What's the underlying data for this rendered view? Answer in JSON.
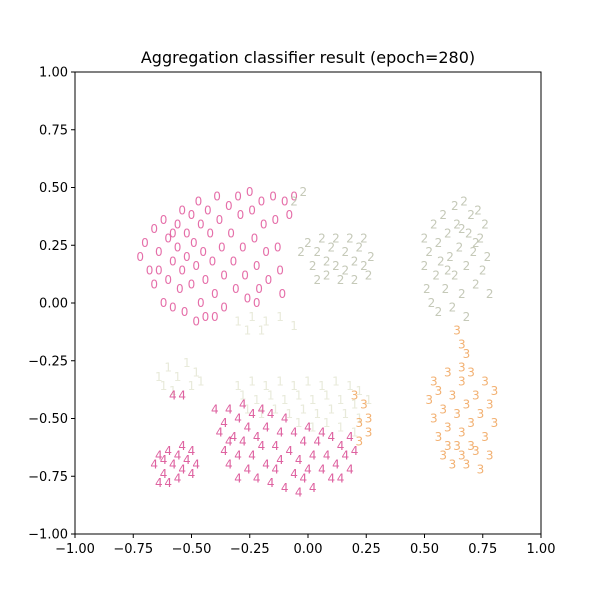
{
  "chart_data": {
    "type": "scatter",
    "title": "Aggregation classifier result (epoch=280)",
    "xlabel": "",
    "ylabel": "",
    "xlim": [
      -1.0,
      1.0
    ],
    "ylim": [
      -1.0,
      1.0
    ],
    "grid": false,
    "xticks": [
      "−1.00",
      "−0.75",
      "−0.50",
      "−0.25",
      "0.00",
      "0.25",
      "0.50",
      "0.75",
      "1.00"
    ],
    "yticks": [
      "1.00",
      "0.75",
      "0.50",
      "0.25",
      "0.00",
      "−0.25",
      "−0.50",
      "−0.75",
      "−1.00"
    ],
    "series": [
      {
        "label": "0",
        "color": "#e0569a",
        "opacity": 0.85,
        "points": [
          [
            -0.72,
            0.2
          ],
          [
            -0.7,
            0.26
          ],
          [
            -0.68,
            0.14
          ],
          [
            -0.66,
            0.32
          ],
          [
            -0.66,
            0.08
          ],
          [
            -0.64,
            0.22
          ],
          [
            -0.62,
            0.36
          ],
          [
            -0.62,
            0.0
          ],
          [
            -0.6,
            0.28
          ],
          [
            -0.6,
            0.1
          ],
          [
            -0.58,
            0.18
          ],
          [
            -0.58,
            -0.02
          ],
          [
            -0.56,
            0.34
          ],
          [
            -0.56,
            0.24
          ],
          [
            -0.55,
            0.06
          ],
          [
            -0.54,
            0.4
          ],
          [
            -0.54,
            0.14
          ],
          [
            -0.53,
            -0.04
          ],
          [
            -0.52,
            0.3
          ],
          [
            -0.52,
            0.2
          ],
          [
            -0.5,
            0.38
          ],
          [
            -0.5,
            0.08
          ],
          [
            -0.49,
            0.26
          ],
          [
            -0.48,
            0.16
          ],
          [
            -0.47,
            0.44
          ],
          [
            -0.46,
            0.0
          ],
          [
            -0.46,
            0.34
          ],
          [
            -0.45,
            0.22
          ],
          [
            -0.44,
            0.1
          ],
          [
            -0.44,
            -0.06
          ],
          [
            -0.43,
            0.4
          ],
          [
            -0.42,
            0.3
          ],
          [
            -0.41,
            0.18
          ],
          [
            -0.4,
            0.04
          ],
          [
            -0.39,
            0.46
          ],
          [
            -0.38,
            0.36
          ],
          [
            -0.37,
            0.24
          ],
          [
            -0.36,
            0.12
          ],
          [
            -0.36,
            -0.02
          ],
          [
            -0.34,
            0.42
          ],
          [
            -0.33,
            0.3
          ],
          [
            -0.32,
            0.18
          ],
          [
            -0.31,
            0.06
          ],
          [
            -0.3,
            0.46
          ],
          [
            -0.29,
            0.38
          ],
          [
            -0.28,
            0.24
          ],
          [
            -0.27,
            0.12
          ],
          [
            -0.26,
            0.02
          ],
          [
            -0.25,
            0.48
          ],
          [
            -0.24,
            0.4
          ],
          [
            -0.23,
            0.28
          ],
          [
            -0.22,
            0.16
          ],
          [
            -0.21,
            0.06
          ],
          [
            -0.2,
            0.44
          ],
          [
            -0.19,
            0.34
          ],
          [
            -0.18,
            0.22
          ],
          [
            -0.17,
            0.1
          ],
          [
            -0.22,
            0.0
          ],
          [
            -0.15,
            0.46
          ],
          [
            -0.14,
            0.36
          ],
          [
            -0.13,
            0.24
          ],
          [
            -0.12,
            0.14
          ],
          [
            -0.11,
            0.04
          ],
          [
            -0.1,
            0.44
          ],
          [
            -0.08,
            0.38
          ],
          [
            -0.06,
            0.46
          ],
          [
            -0.48,
            -0.08
          ],
          [
            -0.4,
            -0.06
          ],
          [
            -0.58,
            0.3
          ],
          [
            -0.64,
            0.14
          ]
        ]
      },
      {
        "label": "1",
        "color": "#e6e8d6",
        "opacity": 0.9,
        "points": [
          [
            -0.3,
            -0.08
          ],
          [
            -0.24,
            -0.06
          ],
          [
            -0.18,
            -0.08
          ],
          [
            -0.12,
            -0.06
          ],
          [
            -0.06,
            -0.1
          ],
          [
            -0.26,
            -0.12
          ],
          [
            -0.2,
            -0.12
          ],
          [
            -0.64,
            -0.32
          ],
          [
            -0.6,
            -0.28
          ],
          [
            -0.56,
            -0.32
          ],
          [
            -0.52,
            -0.26
          ],
          [
            -0.48,
            -0.3
          ],
          [
            -0.46,
            -0.34
          ],
          [
            -0.62,
            -0.36
          ],
          [
            -0.58,
            -0.38
          ],
          [
            -0.5,
            -0.36
          ],
          [
            -0.3,
            -0.36
          ],
          [
            -0.24,
            -0.34
          ],
          [
            -0.18,
            -0.36
          ],
          [
            -0.12,
            -0.34
          ],
          [
            -0.06,
            -0.36
          ],
          [
            0.0,
            -0.34
          ],
          [
            0.06,
            -0.36
          ],
          [
            0.12,
            -0.34
          ],
          [
            0.18,
            -0.36
          ],
          [
            0.22,
            -0.38
          ],
          [
            -0.28,
            -0.4
          ],
          [
            -0.22,
            -0.42
          ],
          [
            -0.16,
            -0.4
          ],
          [
            -0.1,
            -0.42
          ],
          [
            -0.04,
            -0.4
          ],
          [
            0.02,
            -0.42
          ],
          [
            0.08,
            -0.4
          ],
          [
            0.14,
            -0.42
          ],
          [
            0.2,
            -0.44
          ],
          [
            0.26,
            -0.42
          ],
          [
            -0.26,
            -0.46
          ],
          [
            -0.2,
            -0.48
          ],
          [
            -0.14,
            -0.46
          ],
          [
            -0.08,
            -0.48
          ],
          [
            -0.02,
            -0.46
          ],
          [
            0.04,
            -0.48
          ],
          [
            0.1,
            -0.46
          ],
          [
            0.16,
            -0.48
          ],
          [
            0.22,
            -0.5
          ],
          [
            -0.04,
            -0.52
          ],
          [
            0.02,
            -0.54
          ],
          [
            0.08,
            -0.52
          ],
          [
            0.14,
            -0.54
          ],
          [
            0.2,
            -0.56
          ]
        ]
      },
      {
        "label": "2",
        "color": "#bfc3b0",
        "opacity": 0.9,
        "points": [
          [
            -0.06,
            0.44
          ],
          [
            -0.02,
            0.48
          ],
          [
            -0.03,
            0.22
          ],
          [
            0.0,
            0.26
          ],
          [
            0.02,
            0.16
          ],
          [
            0.04,
            0.22
          ],
          [
            0.04,
            0.1
          ],
          [
            0.06,
            0.28
          ],
          [
            0.08,
            0.18
          ],
          [
            0.08,
            0.12
          ],
          [
            0.1,
            0.24
          ],
          [
            0.12,
            0.16
          ],
          [
            0.12,
            0.28
          ],
          [
            0.14,
            0.1
          ],
          [
            0.16,
            0.22
          ],
          [
            0.16,
            0.14
          ],
          [
            0.18,
            0.28
          ],
          [
            0.2,
            0.18
          ],
          [
            0.2,
            0.1
          ],
          [
            0.22,
            0.24
          ],
          [
            0.24,
            0.16
          ],
          [
            0.24,
            0.28
          ],
          [
            0.26,
            0.12
          ],
          [
            0.27,
            0.2
          ],
          [
            0.5,
            0.28
          ],
          [
            0.5,
            0.16
          ],
          [
            0.51,
            0.06
          ],
          [
            0.52,
            0.22
          ],
          [
            0.53,
            0.0
          ],
          [
            0.54,
            0.34
          ],
          [
            0.55,
            0.12
          ],
          [
            0.56,
            0.26
          ],
          [
            0.56,
            -0.04
          ],
          [
            0.57,
            0.18
          ],
          [
            0.58,
            0.38
          ],
          [
            0.59,
            0.06
          ],
          [
            0.6,
            0.3
          ],
          [
            0.61,
            0.2
          ],
          [
            0.62,
            -0.02
          ],
          [
            0.63,
            0.42
          ],
          [
            0.63,
            0.12
          ],
          [
            0.64,
            0.34
          ],
          [
            0.65,
            0.24
          ],
          [
            0.66,
            0.04
          ],
          [
            0.67,
            0.44
          ],
          [
            0.68,
            0.16
          ],
          [
            0.68,
            -0.06
          ],
          [
            0.69,
            0.3
          ],
          [
            0.7,
            0.38
          ],
          [
            0.71,
            0.22
          ],
          [
            0.72,
            0.08
          ],
          [
            0.73,
            0.4
          ],
          [
            0.74,
            0.28
          ],
          [
            0.75,
            0.14
          ],
          [
            0.76,
            0.34
          ],
          [
            0.77,
            0.2
          ],
          [
            0.78,
            0.04
          ],
          [
            0.6,
            0.14
          ],
          [
            0.66,
            0.32
          ],
          [
            0.72,
            0.26
          ]
        ]
      },
      {
        "label": "3",
        "color": "#f0a35a",
        "opacity": 0.85,
        "points": [
          [
            0.64,
            -0.12
          ],
          [
            0.66,
            -0.18
          ],
          [
            0.68,
            -0.22
          ],
          [
            0.66,
            -0.28
          ],
          [
            0.52,
            -0.42
          ],
          [
            0.54,
            -0.34
          ],
          [
            0.54,
            -0.5
          ],
          [
            0.56,
            -0.38
          ],
          [
            0.56,
            -0.58
          ],
          [
            0.58,
            -0.46
          ],
          [
            0.58,
            -0.66
          ],
          [
            0.6,
            -0.3
          ],
          [
            0.6,
            -0.54
          ],
          [
            0.62,
            -0.4
          ],
          [
            0.62,
            -0.7
          ],
          [
            0.64,
            -0.48
          ],
          [
            0.64,
            -0.62
          ],
          [
            0.66,
            -0.34
          ],
          [
            0.66,
            -0.56
          ],
          [
            0.68,
            -0.44
          ],
          [
            0.68,
            -0.7
          ],
          [
            0.7,
            -0.3
          ],
          [
            0.7,
            -0.52
          ],
          [
            0.72,
            -0.4
          ],
          [
            0.72,
            -0.64
          ],
          [
            0.74,
            -0.48
          ],
          [
            0.74,
            -0.72
          ],
          [
            0.76,
            -0.34
          ],
          [
            0.76,
            -0.58
          ],
          [
            0.78,
            -0.44
          ],
          [
            0.78,
            -0.66
          ],
          [
            0.8,
            -0.52
          ],
          [
            0.8,
            -0.38
          ],
          [
            0.6,
            -0.62
          ],
          [
            0.7,
            -0.62
          ],
          [
            0.66,
            -0.66
          ],
          [
            0.2,
            -0.4
          ],
          [
            0.24,
            -0.44
          ],
          [
            0.26,
            -0.5
          ],
          [
            0.22,
            -0.52
          ],
          [
            0.26,
            -0.56
          ],
          [
            0.22,
            -0.6
          ]
        ]
      },
      {
        "label": "4",
        "color": "#d8468f",
        "opacity": 0.85,
        "points": [
          [
            -0.58,
            -0.4
          ],
          [
            -0.54,
            -0.4
          ],
          [
            -0.66,
            -0.7
          ],
          [
            -0.64,
            -0.66
          ],
          [
            -0.62,
            -0.74
          ],
          [
            -0.62,
            -0.68
          ],
          [
            -0.6,
            -0.78
          ],
          [
            -0.6,
            -0.64
          ],
          [
            -0.58,
            -0.7
          ],
          [
            -0.56,
            -0.76
          ],
          [
            -0.56,
            -0.66
          ],
          [
            -0.54,
            -0.72
          ],
          [
            -0.52,
            -0.68
          ],
          [
            -0.5,
            -0.74
          ],
          [
            -0.5,
            -0.64
          ],
          [
            -0.48,
            -0.7
          ],
          [
            -0.64,
            -0.78
          ],
          [
            -0.54,
            -0.62
          ],
          [
            -0.4,
            -0.46
          ],
          [
            -0.38,
            -0.56
          ],
          [
            -0.36,
            -0.52
          ],
          [
            -0.36,
            -0.64
          ],
          [
            -0.34,
            -0.46
          ],
          [
            -0.34,
            -0.7
          ],
          [
            -0.32,
            -0.58
          ],
          [
            -0.3,
            -0.5
          ],
          [
            -0.3,
            -0.66
          ],
          [
            -0.28,
            -0.44
          ],
          [
            -0.28,
            -0.6
          ],
          [
            -0.26,
            -0.72
          ],
          [
            -0.26,
            -0.54
          ],
          [
            -0.24,
            -0.48
          ],
          [
            -0.24,
            -0.66
          ],
          [
            -0.22,
            -0.58
          ],
          [
            -0.22,
            -0.76
          ],
          [
            -0.2,
            -0.46
          ],
          [
            -0.2,
            -0.62
          ],
          [
            -0.18,
            -0.7
          ],
          [
            -0.18,
            -0.54
          ],
          [
            -0.16,
            -0.78
          ],
          [
            -0.16,
            -0.48
          ],
          [
            -0.14,
            -0.62
          ],
          [
            -0.14,
            -0.72
          ],
          [
            -0.12,
            -0.56
          ],
          [
            -0.12,
            -0.68
          ],
          [
            -0.1,
            -0.8
          ],
          [
            -0.1,
            -0.5
          ],
          [
            -0.08,
            -0.64
          ],
          [
            -0.06,
            -0.74
          ],
          [
            -0.06,
            -0.56
          ],
          [
            -0.04,
            -0.68
          ],
          [
            -0.04,
            -0.82
          ],
          [
            -0.02,
            -0.6
          ],
          [
            0.0,
            -0.72
          ],
          [
            0.0,
            -0.54
          ],
          [
            0.02,
            -0.66
          ],
          [
            0.02,
            -0.8
          ],
          [
            0.04,
            -0.6
          ],
          [
            0.06,
            -0.72
          ],
          [
            0.06,
            -0.56
          ],
          [
            0.08,
            -0.66
          ],
          [
            0.1,
            -0.76
          ],
          [
            0.1,
            -0.58
          ],
          [
            0.12,
            -0.7
          ],
          [
            0.14,
            -0.62
          ],
          [
            0.14,
            -0.76
          ],
          [
            0.16,
            -0.66
          ],
          [
            0.18,
            -0.58
          ],
          [
            0.18,
            -0.72
          ],
          [
            0.2,
            -0.64
          ],
          [
            -0.3,
            -0.76
          ],
          [
            -0.34,
            -0.6
          ],
          [
            -0.02,
            -0.76
          ]
        ]
      }
    ]
  }
}
